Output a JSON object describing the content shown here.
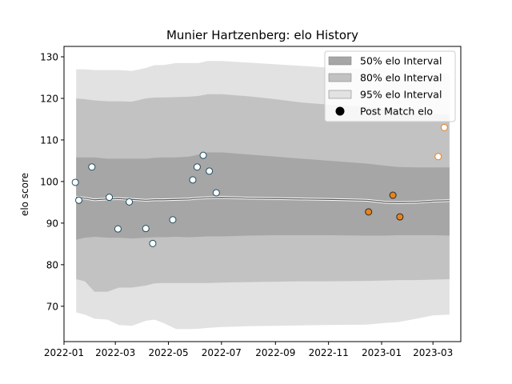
{
  "chart_data": {
    "type": "line",
    "title": "Munier Hartzenberg: elo History",
    "xlabel": "",
    "ylabel": "elo score",
    "xlim": [
      "2022-01-01",
      "2023-04-02"
    ],
    "ylim": [
      61.5,
      132.5
    ],
    "x_ticks": [
      "2022-01",
      "2022-03",
      "2022-05",
      "2022-07",
      "2022-09",
      "2022-11",
      "2023-01",
      "2023-03"
    ],
    "y_ticks": [
      70,
      80,
      90,
      100,
      110,
      120,
      130
    ],
    "grid": false,
    "legend_position": "top-right",
    "legend": [
      {
        "label": "50% elo Interval",
        "kind": "patch",
        "color": "#a6a6a6"
      },
      {
        "label": "80% elo Interval",
        "kind": "patch",
        "color": "#c2c2c2"
      },
      {
        "label": "95% elo Interval",
        "kind": "patch",
        "color": "#e2e2e2"
      },
      {
        "label": "Post Match elo",
        "kind": "marker",
        "color": "#000000"
      }
    ],
    "bands": {
      "x": [
        "2022-01-15",
        "2022-01-25",
        "2022-02-05",
        "2022-02-20",
        "2022-03-05",
        "2022-03-20",
        "2022-04-05",
        "2022-04-15",
        "2022-04-25",
        "2022-05-10",
        "2022-05-25",
        "2022-06-05",
        "2022-06-15",
        "2022-07-01",
        "2022-08-01",
        "2022-09-01",
        "2022-10-01",
        "2022-11-01",
        "2022-12-15",
        "2023-01-05",
        "2023-01-20",
        "2023-02-10",
        "2023-03-01",
        "2023-03-20"
      ],
      "p95_upper": [
        127,
        127,
        126.8,
        126.8,
        126.8,
        126.6,
        127.3,
        128,
        128,
        128.5,
        128.5,
        128.5,
        129,
        129,
        128.6,
        128.2,
        127.8,
        127.4,
        127,
        126.9,
        126.7,
        126.5,
        126.3,
        126
      ],
      "p95_lower": [
        68.5,
        68,
        67,
        66.8,
        65.5,
        65.3,
        66.5,
        66.8,
        66,
        64.5,
        64.5,
        64.6,
        64.8,
        65,
        65.2,
        65.3,
        65.4,
        65.5,
        65.6,
        66,
        66.2,
        67,
        67.8,
        68
      ],
      "p80_upper": [
        120,
        119.8,
        119.5,
        119.3,
        119.3,
        119.2,
        120,
        120.2,
        120.2,
        120.3,
        120.4,
        120.6,
        121,
        121,
        120.5,
        119.8,
        119,
        118.5,
        118,
        117.5,
        117,
        116.5,
        116.3,
        116
      ],
      "p80_lower": [
        76.5,
        76,
        73.5,
        73.5,
        74.5,
        74.5,
        75,
        75.5,
        75.6,
        75.6,
        75.6,
        75.6,
        75.6,
        75.7,
        75.8,
        75.9,
        76,
        76,
        76.1,
        76.2,
        76.3,
        76.3,
        76.4,
        76.5
      ],
      "p50_upper": [
        105.8,
        105.8,
        105.8,
        105.5,
        105.5,
        105.5,
        105.5,
        105.7,
        105.8,
        105.8,
        106,
        106.5,
        107,
        107,
        106.5,
        106,
        105.5,
        105,
        104.3,
        103.8,
        103.5,
        103.4,
        103.4,
        103.4
      ],
      "p50_lower": [
        86,
        86.5,
        86.7,
        86.5,
        86.5,
        86.3,
        86.5,
        86.6,
        86.6,
        86.7,
        86.6,
        86.7,
        86.8,
        86.8,
        87,
        87.1,
        87.1,
        87.1,
        87,
        87,
        87.1,
        87.1,
        87.1,
        87
      ]
    },
    "series": [
      {
        "x": [
          "2022-01-15",
          "2022-01-25",
          "2022-02-05",
          "2022-02-20",
          "2022-03-05",
          "2022-03-20",
          "2022-04-05",
          "2022-04-15",
          "2022-04-25",
          "2022-05-10",
          "2022-05-25",
          "2022-06-05",
          "2022-06-15",
          "2022-07-01",
          "2022-08-01",
          "2022-09-01",
          "2022-10-01",
          "2022-11-01",
          "2022-12-15",
          "2023-01-05",
          "2023-01-20",
          "2023-02-10",
          "2023-03-01",
          "2023-03-20"
        ],
        "values": [
          96.2,
          96.0,
          95.6,
          95.8,
          95.9,
          95.7,
          95.5,
          95.6,
          95.6,
          95.7,
          95.8,
          96,
          96.1,
          96.2,
          96.0,
          95.9,
          95.8,
          95.7,
          95.5,
          95.0,
          94.9,
          95.0,
          95.3,
          95.4
        ]
      }
    ],
    "points": [
      {
        "x": "2022-01-14",
        "y": 99.8,
        "group": "past"
      },
      {
        "x": "2022-01-18",
        "y": 95.5,
        "group": "past"
      },
      {
        "x": "2022-02-02",
        "y": 103.5,
        "group": "past"
      },
      {
        "x": "2022-02-22",
        "y": 96.2,
        "group": "past"
      },
      {
        "x": "2022-03-04",
        "y": 88.6,
        "group": "past"
      },
      {
        "x": "2022-03-17",
        "y": 95.1,
        "group": "past"
      },
      {
        "x": "2022-04-05",
        "y": 88.7,
        "group": "past"
      },
      {
        "x": "2022-04-13",
        "y": 85.1,
        "group": "past"
      },
      {
        "x": "2022-05-06",
        "y": 90.8,
        "group": "past"
      },
      {
        "x": "2022-05-29",
        "y": 100.4,
        "group": "past"
      },
      {
        "x": "2022-06-03",
        "y": 103.5,
        "group": "past"
      },
      {
        "x": "2022-06-10",
        "y": 106.3,
        "group": "past"
      },
      {
        "x": "2022-06-17",
        "y": 102.5,
        "group": "past"
      },
      {
        "x": "2022-06-25",
        "y": 97.3,
        "group": "past"
      },
      {
        "x": "2022-12-17",
        "y": 92.7,
        "group": "recent"
      },
      {
        "x": "2023-01-14",
        "y": 96.7,
        "group": "recent"
      },
      {
        "x": "2023-01-22",
        "y": 91.5,
        "group": "recent"
      },
      {
        "x": "2023-03-07",
        "y": 106.0,
        "group": "projected"
      },
      {
        "x": "2023-03-14",
        "y": 113.0,
        "group": "projected"
      }
    ]
  }
}
